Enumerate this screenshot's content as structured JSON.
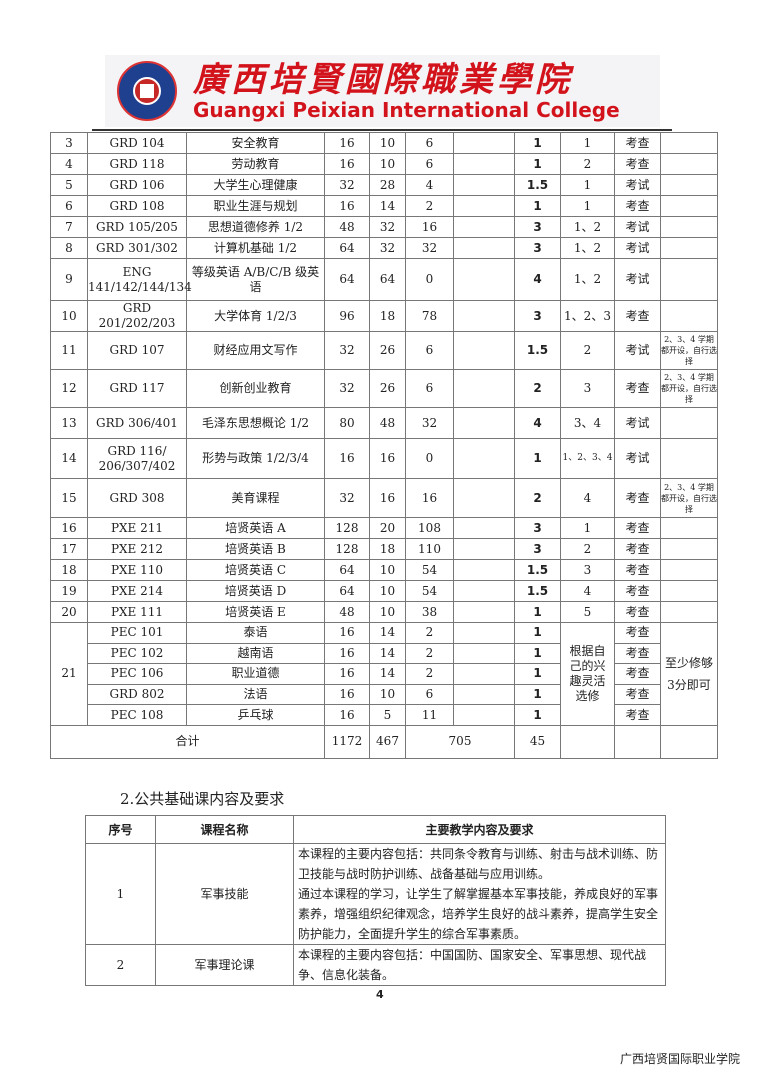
{
  "header": {
    "college_cn": "廣西培賢國際職業學院",
    "college_en": "Guangxi Peixian International College"
  },
  "course_table": {
    "rows": [
      [
        "3",
        "GRD 104",
        "安全教育",
        "16",
        "10",
        "6",
        "",
        "1",
        "1",
        "考查",
        ""
      ],
      [
        "4",
        "GRD 118",
        "劳动教育",
        "16",
        "10",
        "6",
        "",
        "1",
        "2",
        "考查",
        ""
      ],
      [
        "5",
        "GRD 106",
        "大学生心理健康",
        "32",
        "28",
        "4",
        "",
        "1.5",
        "1",
        "考试",
        ""
      ],
      [
        "6",
        "GRD 108",
        "职业生涯与规划",
        "16",
        "14",
        "2",
        "",
        "1",
        "1",
        "考查",
        ""
      ],
      [
        "7",
        "GRD 105/205",
        "思想道德修养 1/2",
        "48",
        "32",
        "16",
        "",
        "3",
        "1、2",
        "考试",
        ""
      ],
      [
        "8",
        "GRD 301/302",
        "计算机基础 1/2",
        "64",
        "32",
        "32",
        "",
        "3",
        "1、2",
        "考试",
        ""
      ],
      [
        "9",
        "ENG 141/142/144/134",
        "等级英语 A/B/C/B 级英语",
        "64",
        "64",
        "0",
        "",
        "4",
        "1、2",
        "考试",
        ""
      ],
      [
        "10",
        "GRD 201/202/203",
        "大学体育 1/2/3",
        "96",
        "18",
        "78",
        "",
        "3",
        "1、2、3",
        "考查",
        ""
      ],
      [
        "11",
        "GRD 107",
        "财经应用文写作",
        "32",
        "26",
        "6",
        "",
        "1.5",
        "2",
        "考试",
        "2、3、4 学期都开设，自行选择"
      ],
      [
        "12",
        "GRD 117",
        "创新创业教育",
        "32",
        "26",
        "6",
        "",
        "2",
        "3",
        "考查",
        "2、3、4 学期都开设，自行选择"
      ],
      [
        "13",
        "GRD 306/401",
        "毛泽东思想概论 1/2",
        "80",
        "48",
        "32",
        "",
        "4",
        "3、4",
        "考试",
        ""
      ],
      [
        "14",
        "GRD 116/ 206/307/402",
        "形势与政策 1/2/3/4",
        "16",
        "16",
        "0",
        "",
        "1",
        "1、2、3、4",
        "考试",
        ""
      ],
      [
        "15",
        "GRD 308",
        "美育课程",
        "32",
        "16",
        "16",
        "",
        "2",
        "4",
        "考查",
        "2、3、4 学期都开设，自行选择"
      ],
      [
        "16",
        "PXE 211",
        "培贤英语 A",
        "128",
        "20",
        "108",
        "",
        "3",
        "1",
        "考查",
        ""
      ],
      [
        "17",
        "PXE 212",
        "培贤英语 B",
        "128",
        "18",
        "110",
        "",
        "3",
        "2",
        "考查",
        ""
      ],
      [
        "18",
        "PXE 110",
        "培贤英语 C",
        "64",
        "10",
        "54",
        "",
        "1.5",
        "3",
        "考查",
        ""
      ],
      [
        "19",
        "PXE 214",
        "培贤英语 D",
        "64",
        "10",
        "54",
        "",
        "1.5",
        "4",
        "考查",
        ""
      ],
      [
        "20",
        "PXE 111",
        "培贤英语 E",
        "48",
        "10",
        "38",
        "",
        "1",
        "5",
        "考查",
        ""
      ]
    ],
    "elective_group": {
      "no": "21",
      "semester": "根据自己的兴趣灵活选修",
      "note": "至少修够3分即可",
      "rows": [
        [
          "PEC 101",
          "泰语",
          "16",
          "14",
          "2",
          "",
          "1",
          "考查"
        ],
        [
          "PEC 102",
          "越南语",
          "16",
          "14",
          "2",
          "",
          "1",
          "考查"
        ],
        [
          "PEC 106",
          "职业道德",
          "16",
          "14",
          "2",
          "",
          "1",
          "考查"
        ],
        [
          "GRD 802",
          "法语",
          "16",
          "10",
          "6",
          "",
          "1",
          "考查"
        ],
        [
          "PEC 108",
          "乒乓球",
          "16",
          "5",
          "11",
          "",
          "1",
          "考查"
        ]
      ]
    },
    "total": {
      "label": "合计",
      "hours": "1172",
      "theory": "467",
      "practice": "705",
      "credits": "45"
    }
  },
  "section_title": "2.公共基础课内容及要求",
  "content_table": {
    "headers": [
      "序号",
      "课程名称",
      "主要教学内容及要求"
    ],
    "rows": [
      {
        "no": "1",
        "name": "军事技能",
        "content": "本课程的主要内容包括：共同条令教育与训练、射击与战术训练、防卫技能与战时防护训练、战备基础与应用训练。\n通过本课程的学习，让学生了解掌握基本军事技能，养成良好的军事素养，增强组织纪律观念，培养学生良好的战斗素养，提高学生安全防护能力，全面提升学生的综合军事素质。"
      },
      {
        "no": "2",
        "name": "军事理论课",
        "content": "本课程的主要内容包括：中国国防、国家安全、军事思想、现代战争、信息化装备。"
      }
    ]
  },
  "page_number": "4",
  "footer": "广西培贤国际职业学院"
}
